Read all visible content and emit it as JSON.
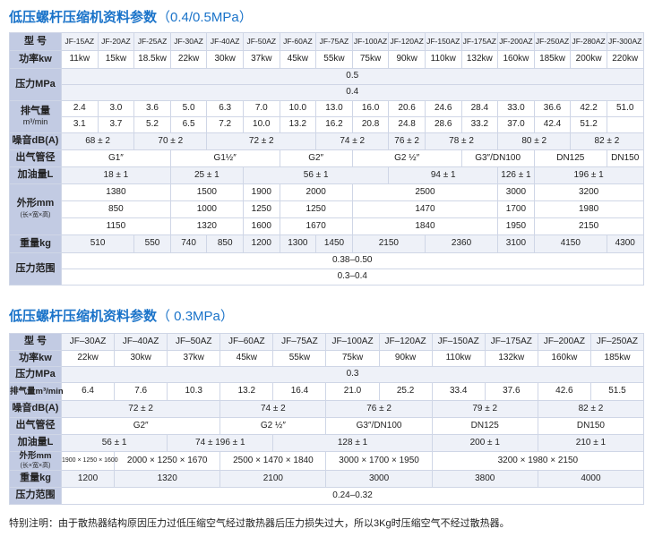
{
  "t1": {
    "title": "低压螺杆压缩机资料参数",
    "subtitle": "（0.4/0.5MPa）",
    "models": [
      "JF-15AZ",
      "JF-20AZ",
      "JF-25AZ",
      "JF-30AZ",
      "JF-40AZ",
      "JF-50AZ",
      "JF-60AZ",
      "JF-75AZ",
      "JF-100AZ",
      "JF-120AZ",
      "JF-150AZ",
      "JF-175AZ",
      "JF-200AZ",
      "JF-250AZ",
      "JF-280AZ",
      "JF-300AZ"
    ],
    "labels": {
      "model": "型 号",
      "power": "功率kw",
      "pressure": "压力MPa",
      "air_line1": "排气量",
      "air_line2": "m³/min",
      "noise": "噪音dB(A)",
      "outlet": "出气管径",
      "oil": "加油量L",
      "dims_line1": "外形mm",
      "dims_line2": "(长×宽×高)",
      "weight": "重量kg",
      "range": "压力范围"
    },
    "power": [
      "11kw",
      "15kw",
      "18.5kw",
      "22kw",
      "30kw",
      "37kw",
      "45kw",
      "55kw",
      "75kw",
      "90kw",
      "110kw",
      "132kw",
      "160kw",
      "185kw",
      "200kw",
      "220kw"
    ],
    "pressure": [
      "0.5",
      "0.4"
    ],
    "air_row1": [
      "2.4",
      "3.0",
      "3.6",
      "5.0",
      "6.3",
      "7.0",
      "10.0",
      "13.0",
      "16.0",
      "20.6",
      "24.6",
      "28.4",
      "33.0",
      "36.6",
      "42.2",
      "51.0"
    ],
    "air_row2": [
      "3.1",
      "3.7",
      "5.2",
      "6.5",
      "7.2",
      "10.0",
      "13.2",
      "16.2",
      "20.8",
      "24.8",
      "28.6",
      "33.2",
      "37.0",
      "42.4",
      "51.2"
    ],
    "noise": [
      "68 ± 2",
      "70 ± 2",
      "72 ± 2",
      "74 ± 2",
      "76 ± 2",
      "78 ± 2",
      "80 ± 2",
      "82 ± 2"
    ],
    "outlet": [
      "G1″",
      "G1½″",
      "G2″",
      "G2 ½″",
      "G3″/DN100",
      "DN125",
      "DN150"
    ],
    "oil": [
      "18 ± 1",
      "25 ± 1",
      "56 ± 1",
      "94 ± 1",
      "126 ± 1",
      "196 ± 1"
    ],
    "dims_l": [
      "1380",
      "1500",
      "1900",
      "2000",
      "2500",
      "3000",
      "3200"
    ],
    "dims_w": [
      "850",
      "1000",
      "1250",
      "1250",
      "1470",
      "1700",
      "1980"
    ],
    "dims_h": [
      "1150",
      "1320",
      "1600",
      "1670",
      "1840",
      "1950",
      "2150"
    ],
    "weight": [
      "510",
      "550",
      "740",
      "850",
      "1200",
      "1300",
      "1450",
      "2150",
      "2360",
      "3100",
      "4150",
      "4300"
    ],
    "range": [
      "0.38–0.50",
      "0.3–0.4"
    ]
  },
  "t2": {
    "title": "低压螺杆压缩机资料参数",
    "subtitle": "（ 0.3MPa）",
    "models": [
      "JF–30AZ",
      "JF–40AZ",
      "JF–50AZ",
      "JF–60AZ",
      "JF–75AZ",
      "JF–100AZ",
      "JF–120AZ",
      "JF–150AZ",
      "JF–175AZ",
      "JF–200AZ",
      "JF–250AZ"
    ],
    "labels": {
      "model": "型 号",
      "power": "功率kw",
      "pressure": "压力MPa",
      "air": "排气量m³/min",
      "noise": "噪音dB(A)",
      "outlet": "出气管径",
      "oil": "加油量L",
      "dims_line1": "外形mm",
      "dims_line2": "(长×宽×高)",
      "weight": "重量kg",
      "range": "压力范围"
    },
    "power": [
      "22kw",
      "30kw",
      "37kw",
      "45kw",
      "55kw",
      "75kw",
      "90kw",
      "110kw",
      "132kw",
      "160kw",
      "185kw"
    ],
    "pressure": "0.3",
    "air": [
      "6.4",
      "7.6",
      "10.3",
      "13.2",
      "16.4",
      "21.0",
      "25.2",
      "33.4",
      "37.6",
      "42.6",
      "51.5"
    ],
    "noise": [
      "72 ± 2",
      "74 ± 2",
      "76 ± 2",
      "79 ± 2",
      "82 ± 2"
    ],
    "outlet": [
      "G2″",
      "G2 ½″",
      "G3″/DN100",
      "DN125",
      "DN150"
    ],
    "oil": [
      "56 ± 1",
      "74 ± 196 ± 1",
      "128 ± 1",
      "200 ± 1",
      "210 ± 1"
    ],
    "dims": [
      "1900 × 1250 × 1600",
      "2000 × 1250 × 1670",
      "2500 × 1470 × 1840",
      "3000 × 1700 × 1950",
      "3200 × 1980 × 2150"
    ],
    "weight": [
      "1200",
      "1320",
      "2100",
      "3000",
      "3800",
      "4000"
    ],
    "range": "0.24–0.32"
  },
  "note": "特别注明：由于散热器结构原因压力过低压缩空气经过散热器后压力损失过大，所以3Kg时压缩空气不经过散热器。"
}
